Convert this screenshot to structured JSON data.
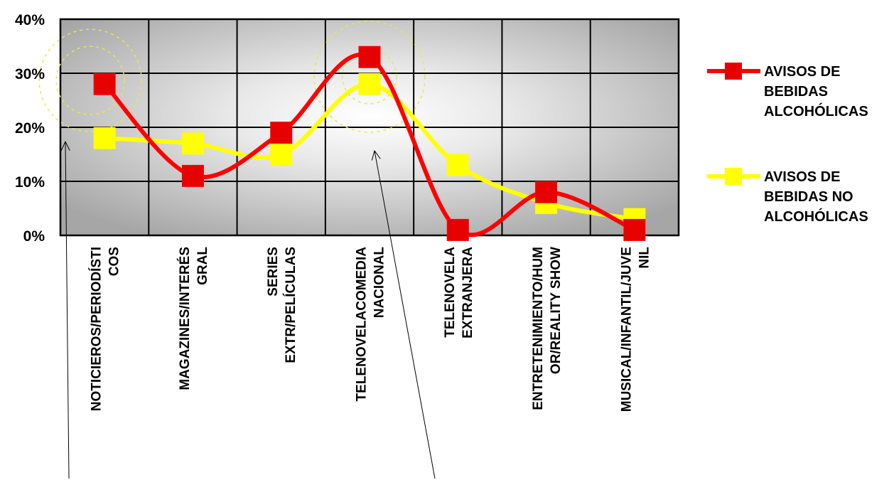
{
  "chart_data": {
    "type": "line",
    "title": "",
    "xlabel": "",
    "ylabel": "",
    "ylim": [
      0,
      40
    ],
    "y_ticks": [
      "0%",
      "10%",
      "20%",
      "30%",
      "40%"
    ],
    "grid": true,
    "smooth": true,
    "legend_position": "right",
    "categories": [
      [
        "NOTICIEROS/PERIODÍSTI",
        "COS"
      ],
      [
        "MAGAZINES/INTERÉS",
        "GRAL"
      ],
      [
        "SERIES",
        "EXTR/PELÍCULAS"
      ],
      [
        "TELENOVELACOMEDIA",
        "NACIONAL"
      ],
      [
        "TELENOVELA",
        "EXTRANJERA"
      ],
      [
        "ENTRETENIMIENTO/HUM",
        "OR/REALITY SHOW"
      ],
      [
        "MUSICAL/INFANTIL/JUVE",
        "NIL"
      ]
    ],
    "series": [
      {
        "name": [
          "AVISOS DE",
          "BEBIDAS",
          "ALCOHÓLICAS"
        ],
        "values": [
          28,
          11,
          19,
          33,
          1,
          8,
          1
        ],
        "color": "#ff0000",
        "marker_color": "#e60000"
      },
      {
        "name": [
          "AVISOS DE",
          "BEBIDAS NO",
          "ALCOHÓLICAS"
        ],
        "values": [
          18,
          17,
          15,
          28,
          13,
          6,
          3
        ],
        "color": "#ffff00",
        "marker_color": "#ffff00"
      }
    ]
  },
  "colors": {
    "plot_edge": "#a8a8a8",
    "plot_center": "#ffffff",
    "grid": "#000000",
    "highlight_ring": "#e8e84a"
  }
}
